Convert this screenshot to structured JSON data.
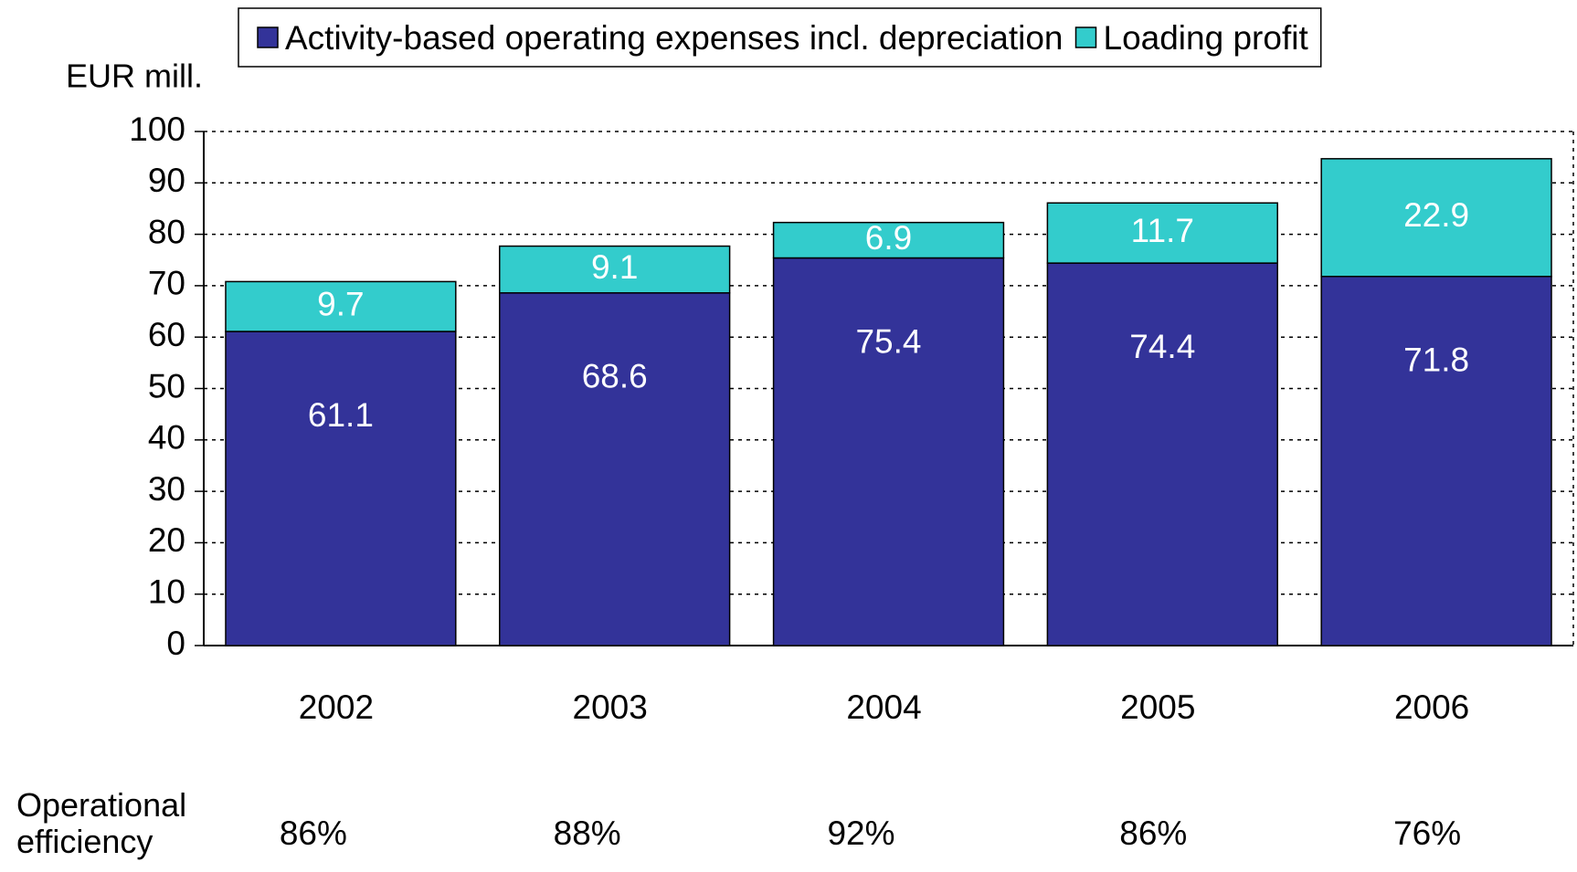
{
  "chart_data": {
    "type": "stacked_bar",
    "y_label": "EUR mill.",
    "categories": [
      "2002",
      "2003",
      "2004",
      "2005",
      "2006"
    ],
    "series": [
      {
        "name": "Activity-based operating expenses incl. depreciation",
        "color": "#333399",
        "values": [
          61.1,
          68.6,
          75.4,
          74.4,
          71.8
        ]
      },
      {
        "name": "Loading profit",
        "color": "#33cccc",
        "values": [
          9.7,
          9.1,
          6.9,
          11.7,
          22.9
        ]
      }
    ],
    "ylim": [
      0,
      100
    ],
    "yticks": [
      0,
      10,
      20,
      30,
      40,
      50,
      60,
      70,
      80,
      90,
      100
    ],
    "grid": true,
    "legend": "top",
    "efficiency": {
      "label": "Operational efficiency",
      "values": [
        86,
        88,
        92,
        86,
        76
      ],
      "value_labels": [
        "86%",
        "88%",
        "92%",
        "86%",
        "76%"
      ]
    }
  }
}
